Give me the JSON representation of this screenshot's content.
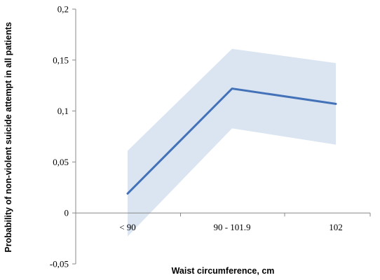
{
  "chart_data": {
    "type": "line",
    "xlabel": "Waist circumference, cm",
    "ylabel": "Probability of non-violent suicide attempt in all patients",
    "categories": [
      "< 90",
      "90 - 101.9",
      "102"
    ],
    "ytick_labels": [
      "-0,05",
      "0",
      "0,05",
      "0,1",
      "0,15",
      "0,2"
    ],
    "yticks": [
      -0.05,
      0,
      0.05,
      0.1,
      0.15,
      0.2
    ],
    "ylim": [
      -0.05,
      0.2
    ],
    "grid": false,
    "series": [
      {
        "values": [
          0.019,
          0.122,
          0.107
        ],
        "lower": [
          -0.023,
          0.083,
          0.067
        ],
        "upper": [
          0.061,
          0.161,
          0.147
        ]
      }
    ],
    "colors": {
      "line": "#4472b8",
      "band": "#dbe5f2",
      "axis": "#888888"
    }
  }
}
